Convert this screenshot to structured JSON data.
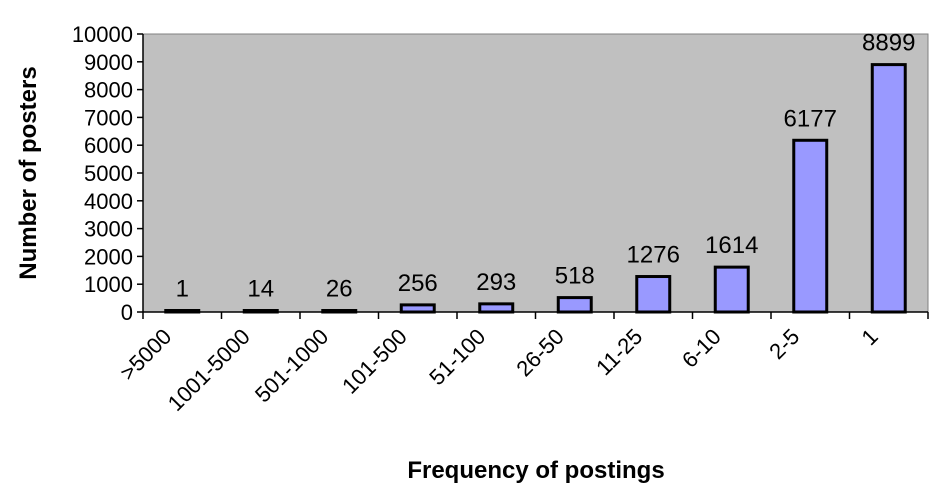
{
  "chart_data": {
    "type": "bar",
    "xlabel": "Frequency of postings",
    "ylabel": "Number of posters",
    "categories": [
      ">5000",
      "1001-5000",
      "501-1000",
      "101-500",
      "51-100",
      "26-50",
      "11-25",
      "6-10",
      "2-5",
      "1"
    ],
    "values": [
      1,
      14,
      26,
      256,
      293,
      518,
      1276,
      1614,
      6177,
      8899
    ],
    "data_labels": [
      "1",
      "14",
      "26",
      "256",
      "293",
      "518",
      "1276",
      "1614",
      "6177",
      "8899"
    ],
    "y_ticks": [
      "0",
      "1000",
      "2000",
      "3000",
      "4000",
      "5000",
      "6000",
      "7000",
      "8000",
      "9000",
      "10000"
    ],
    "ylim": [
      0,
      10000
    ],
    "grid": false,
    "legend": false,
    "colors": {
      "plot_background": "#c0c0c0",
      "bar_fill": "#9999ff",
      "bar_stroke": "#000000"
    }
  }
}
